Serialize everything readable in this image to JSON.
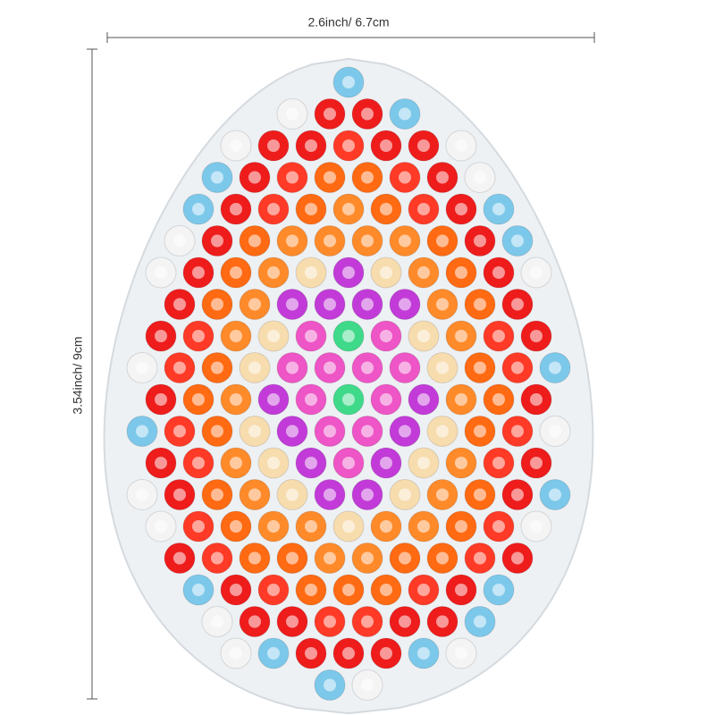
{
  "dimensions": {
    "width": "2.6inch/ 6.7cm",
    "height": "3.54inch/ 9cm"
  }
}
